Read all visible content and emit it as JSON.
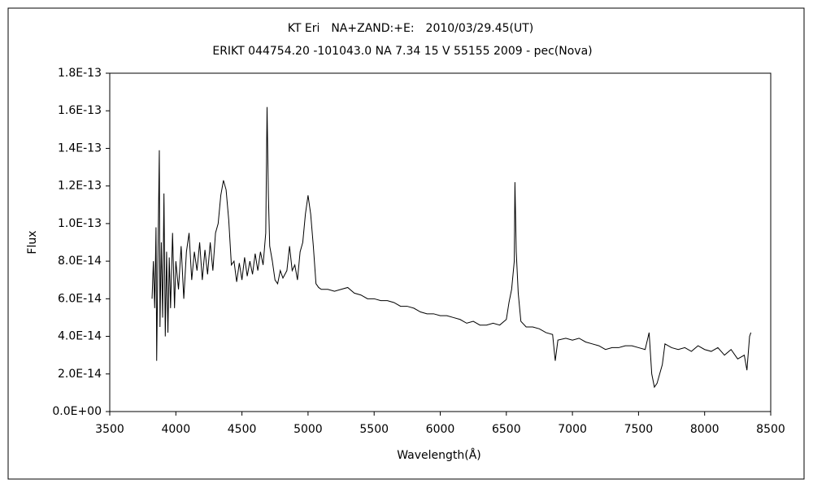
{
  "chart_data": {
    "type": "line",
    "title": "KT Eri　NA+ZAND:+E:　2010/03/29.45(UT)",
    "subtitle": "ERIKT 044754.20 -101043.0 NA 7.34 15 V 55155 2009 - pec(Nova)",
    "x_label": "Wavelength(Å)",
    "y_label": "Flux",
    "series": [
      {
        "name": "KT Eri",
        "color": "#000000",
        "x": [
          3820,
          3830,
          3840,
          3850,
          3855,
          3865,
          3875,
          3880,
          3890,
          3900,
          3910,
          3920,
          3930,
          3940,
          3950,
          3960,
          3975,
          3990,
          4000,
          4020,
          4040,
          4060,
          4080,
          4100,
          4120,
          4140,
          4160,
          4180,
          4200,
          4220,
          4240,
          4260,
          4280,
          4300,
          4320,
          4340,
          4360,
          4380,
          4400,
          4420,
          4440,
          4460,
          4480,
          4500,
          4520,
          4540,
          4560,
          4580,
          4600,
          4620,
          4640,
          4660,
          4680,
          4690,
          4700,
          4710,
          4730,
          4750,
          4770,
          4790,
          4810,
          4840,
          4860,
          4880,
          4900,
          4920,
          4940,
          4960,
          4980,
          5000,
          5020,
          5040,
          5060,
          5080,
          5100,
          5150,
          5200,
          5250,
          5300,
          5350,
          5400,
          5450,
          5500,
          5550,
          5600,
          5650,
          5700,
          5750,
          5800,
          5850,
          5900,
          5950,
          6000,
          6050,
          6100,
          6150,
          6200,
          6250,
          6300,
          6350,
          6400,
          6450,
          6500,
          6520,
          6540,
          6560,
          6565,
          6575,
          6590,
          6610,
          6650,
          6700,
          6750,
          6800,
          6850,
          6870,
          6890,
          6950,
          7000,
          7050,
          7100,
          7150,
          7200,
          7250,
          7300,
          7350,
          7400,
          7450,
          7500,
          7550,
          7580,
          7600,
          7620,
          7640,
          7660,
          7680,
          7700,
          7750,
          7800,
          7850,
          7900,
          7950,
          8000,
          8050,
          8100,
          8150,
          8200,
          8250,
          8300,
          8320,
          8340,
          8350
        ],
        "values": [
          6e-14,
          8e-14,
          5.5e-14,
          9.8e-14,
          2.7e-14,
          8.5e-14,
          1.39e-13,
          4.5e-14,
          9e-14,
          5e-14,
          1.16e-13,
          4e-14,
          8.5e-14,
          4.2e-14,
          8.2e-14,
          5.5e-14,
          9.5e-14,
          5.5e-14,
          8e-14,
          6.5e-14,
          8.8e-14,
          6e-14,
          8.5e-14,
          9.5e-14,
          7e-14,
          8.5e-14,
          7.5e-14,
          9e-14,
          7e-14,
          8.6e-14,
          7.3e-14,
          9e-14,
          7.5e-14,
          9.5e-14,
          1e-13,
          1.15e-13,
          1.23e-13,
          1.18e-13,
          1.02e-13,
          7.8e-14,
          8e-14,
          6.9e-14,
          7.9e-14,
          7e-14,
          8.2e-14,
          7.2e-14,
          8e-14,
          7.3e-14,
          8.4e-14,
          7.5e-14,
          8.5e-14,
          7.8e-14,
          9.5e-14,
          1.62e-13,
          1.15e-13,
          8.8e-14,
          8e-14,
          7e-14,
          6.8e-14,
          7.5e-14,
          7.1e-14,
          7.5e-14,
          8.8e-14,
          7.5e-14,
          7.8e-14,
          7e-14,
          8.5e-14,
          9e-14,
          1.05e-13,
          1.15e-13,
          1.05e-13,
          8.8e-14,
          6.8e-14,
          6.6e-14,
          6.5e-14,
          6.5e-14,
          6.4e-14,
          6.5e-14,
          6.6e-14,
          6.3e-14,
          6.2e-14,
          6e-14,
          6e-14,
          5.9e-14,
          5.9e-14,
          5.8e-14,
          5.6e-14,
          5.6e-14,
          5.5e-14,
          5.3e-14,
          5.2e-14,
          5.2e-14,
          5.1e-14,
          5.1e-14,
          5e-14,
          4.9e-14,
          4.7e-14,
          4.8e-14,
          4.6e-14,
          4.6e-14,
          4.7e-14,
          4.6e-14,
          4.9e-14,
          5.8e-14,
          6.5e-14,
          8e-14,
          1.22e-13,
          8.5e-14,
          6.3e-14,
          4.8e-14,
          4.5e-14,
          4.5e-14,
          4.4e-14,
          4.2e-14,
          4.1e-14,
          2.7e-14,
          3.8e-14,
          3.9e-14,
          3.8e-14,
          3.9e-14,
          3.7e-14,
          3.6e-14,
          3.5e-14,
          3.3e-14,
          3.4e-14,
          3.4e-14,
          3.5e-14,
          3.5e-14,
          3.4e-14,
          3.3e-14,
          4.2e-14,
          2e-14,
          1.3e-14,
          1.5e-14,
          2e-14,
          2.5e-14,
          3.6e-14,
          3.4e-14,
          3.3e-14,
          3.4e-14,
          3.2e-14,
          3.5e-14,
          3.3e-14,
          3.2e-14,
          3.4e-14,
          3e-14,
          3.3e-14,
          2.8e-14,
          3e-14,
          2.2e-14,
          4e-14,
          4.2e-14
        ]
      }
    ],
    "xlim": [
      3500,
      8500
    ],
    "xticks": [
      3500,
      4000,
      4500,
      5000,
      5500,
      6000,
      6500,
      7000,
      7500,
      8000,
      8500
    ],
    "ylim": [
      0,
      1.8e-13
    ],
    "yticks": [
      {
        "value": 0,
        "label": "0.0E+00"
      },
      {
        "value": 2e-14,
        "label": "2.0E-14"
      },
      {
        "value": 4e-14,
        "label": "4.0E-14"
      },
      {
        "value": 6e-14,
        "label": "6.0E-14"
      },
      {
        "value": 8e-14,
        "label": "8.0E-14"
      },
      {
        "value": 1e-13,
        "label": "1.0E-13"
      },
      {
        "value": 1.2e-13,
        "label": "1.2E-13"
      },
      {
        "value": 1.4e-13,
        "label": "1.4E-13"
      },
      {
        "value": 1.6e-13,
        "label": "1.6E-13"
      },
      {
        "value": 1.8e-13,
        "label": "1.8E-13"
      }
    ],
    "grid": false
  }
}
